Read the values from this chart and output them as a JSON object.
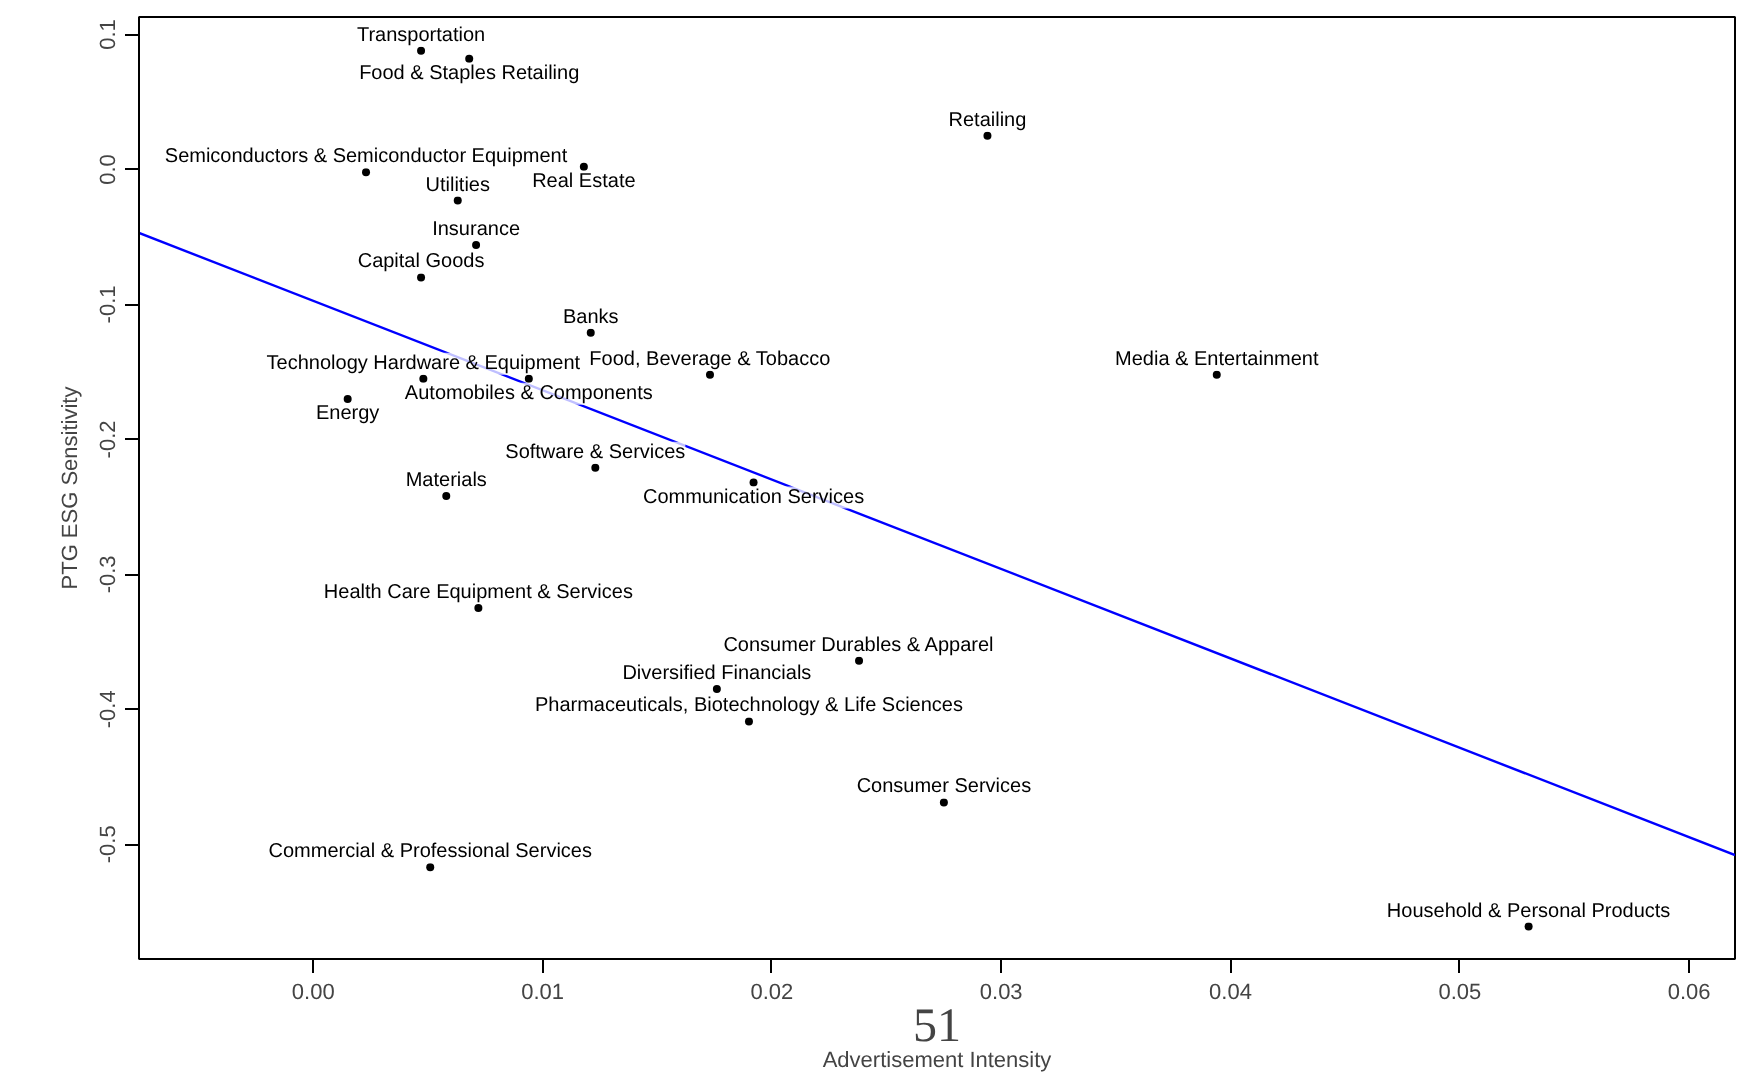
{
  "chart_data": {
    "type": "scatter",
    "xlabel": "Advertisement Intensity",
    "ylabel": "PTG ESG Sensitivity",
    "xlim": [
      -0.0076,
      0.062
    ],
    "ylim": [
      -0.585,
      0.113
    ],
    "xticks": [
      {
        "value": 0,
        "label": "0.00"
      },
      {
        "value": 0.01,
        "label": "0.01"
      },
      {
        "value": 0.02,
        "label": "0.02"
      },
      {
        "value": 0.03,
        "label": "0.03"
      },
      {
        "value": 0.04,
        "label": "0.04"
      },
      {
        "value": 0.05,
        "label": "0.05"
      },
      {
        "value": 0.06,
        "label": "0.06"
      }
    ],
    "yticks": [
      0.1,
      {
        "value": 0,
        "label": "0.0"
      },
      -0.1,
      -0.2,
      -0.3,
      -0.4,
      -0.5
    ],
    "grid": false,
    "annotations": [
      "51"
    ],
    "series": [
      {
        "marker": "circle",
        "color": "#000000",
        "x": [
          0.0047,
          0.0068,
          0.0294,
          0.0023,
          0.0118,
          0.0063,
          0.0071,
          0.0047,
          0.0121,
          0.0048,
          0.0094,
          0.0173,
          0.0394,
          0.0015,
          0.0123,
          0.0192,
          0.0058,
          0.0072,
          0.0238,
          0.0176,
          0.019,
          0.0275,
          0.0051,
          0.053
        ],
        "values": [
          0.088,
          0.082,
          0.025,
          -0.002,
          0.002,
          -0.023,
          -0.056,
          -0.08,
          -0.121,
          -0.155,
          -0.155,
          -0.152,
          -0.152,
          -0.17,
          -0.221,
          -0.232,
          -0.242,
          -0.325,
          -0.364,
          -0.385,
          -0.409,
          -0.469,
          -0.517,
          -0.561
        ],
        "value_labels": [
          "Transportation",
          "Food & Staples Retailing",
          "Retailing",
          "Semiconductors & Semiconductor Equipment",
          "Real Estate",
          "Utilities",
          "Insurance",
          "Capital Goods",
          "Banks",
          "Technology Hardware & Equipment",
          "Automobiles & Components",
          "Food, Beverage & Tobacco",
          "Media & Entertainment",
          "Energy",
          "Software & Services",
          "Communication Services",
          "Materials",
          "Health Care Equipment & Services",
          "Consumer Durables & Apparel",
          "Diversified Financials",
          "Pharmaceuticals, Biotechnology & Life Sciences",
          "Consumer Services",
          "Commercial & Professional Services",
          "Household & Personal Products"
        ]
      },
      {
        "type": "line",
        "color": "#0000ff",
        "line_style": "solid",
        "x": [
          -0.0076,
          0.062
        ],
        "values": [
          -0.047,
          -0.508
        ]
      }
    ]
  }
}
